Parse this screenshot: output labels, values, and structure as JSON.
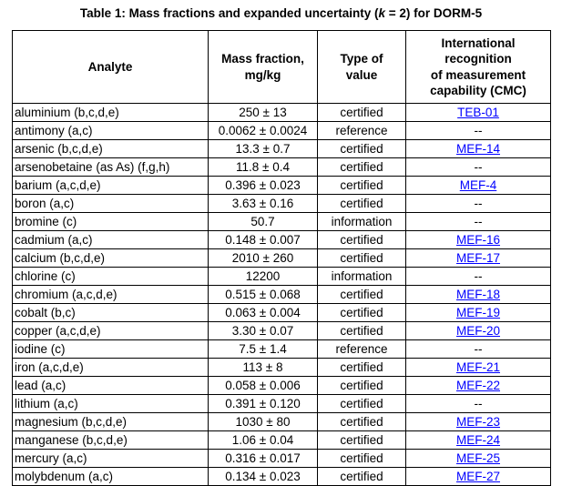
{
  "title": {
    "part1": "Table 1: Mass fractions and expanded uncertainty (",
    "k_symbol": "k",
    "part2": " = 2) for DORM-5"
  },
  "table": {
    "headers": {
      "analyte": "Analyte",
      "mass_fraction": "Mass fraction,\nmg/kg",
      "type_of_value": "Type of\nvalue",
      "cmc": "International recognition\nof measurement\ncapability (CMC)"
    },
    "link_color": "#0000ff",
    "no_entry_symbol": "--",
    "rows": [
      {
        "analyte": "aluminium (b,c,d,e)",
        "mass_fraction": "250 ± 13",
        "type_of_value": "certified",
        "cmc": "TEB-01",
        "cmc_is_link": true
      },
      {
        "analyte": "antimony (a,c)",
        "mass_fraction": "0.0062 ± 0.0024",
        "type_of_value": "reference",
        "cmc": "--",
        "cmc_is_link": false
      },
      {
        "analyte": "arsenic (b,c,d,e)",
        "mass_fraction": "13.3 ± 0.7",
        "type_of_value": "certified",
        "cmc": "MEF-14",
        "cmc_is_link": true
      },
      {
        "analyte": "arsenobetaine (as As) (f,g,h)",
        "mass_fraction": "11.8 ± 0.4",
        "type_of_value": "certified",
        "cmc": "--",
        "cmc_is_link": false
      },
      {
        "analyte": "barium (a,c,d,e)",
        "mass_fraction": "0.396 ± 0.023",
        "type_of_value": "certified",
        "cmc": "MEF-4",
        "cmc_is_link": true
      },
      {
        "analyte": "boron (a,c)",
        "mass_fraction": "3.63 ± 0.16",
        "type_of_value": "certified",
        "cmc": "--",
        "cmc_is_link": false
      },
      {
        "analyte": "bromine (c)",
        "mass_fraction": "50.7",
        "type_of_value": "information",
        "cmc": "--",
        "cmc_is_link": false
      },
      {
        "analyte": "cadmium (a,c)",
        "mass_fraction": "0.148 ± 0.007",
        "type_of_value": "certified",
        "cmc": "MEF-16",
        "cmc_is_link": true
      },
      {
        "analyte": "calcium (b,c,d,e)",
        "mass_fraction": "2010 ± 260",
        "type_of_value": "certified",
        "cmc": "MEF-17",
        "cmc_is_link": true
      },
      {
        "analyte": "chlorine (c)",
        "mass_fraction": "12200",
        "type_of_value": "information",
        "cmc": "--",
        "cmc_is_link": false
      },
      {
        "analyte": "chromium (a,c,d,e)",
        "mass_fraction": "0.515 ± 0.068",
        "type_of_value": "certified",
        "cmc": "MEF-18",
        "cmc_is_link": true
      },
      {
        "analyte": "cobalt (b,c)",
        "mass_fraction": "0.063 ± 0.004",
        "type_of_value": "certified",
        "cmc": "MEF-19",
        "cmc_is_link": true
      },
      {
        "analyte": "copper (a,c,d,e)",
        "mass_fraction": "3.30 ± 0.07",
        "type_of_value": "certified",
        "cmc": "MEF-20",
        "cmc_is_link": true
      },
      {
        "analyte": "iodine (c)",
        "mass_fraction": "7.5 ± 1.4",
        "type_of_value": "reference",
        "cmc": "--",
        "cmc_is_link": false
      },
      {
        "analyte": "iron (a,c,d,e)",
        "mass_fraction": "113 ± 8",
        "type_of_value": "certified",
        "cmc": "MEF-21",
        "cmc_is_link": true
      },
      {
        "analyte": "lead (a,c)",
        "mass_fraction": "0.058 ± 0.006",
        "type_of_value": "certified",
        "cmc": "MEF-22",
        "cmc_is_link": true
      },
      {
        "analyte": "lithium (a,c)",
        "mass_fraction": "0.391 ± 0.120",
        "type_of_value": "certified",
        "cmc": "--",
        "cmc_is_link": false
      },
      {
        "analyte": "magnesium (b,c,d,e)",
        "mass_fraction": "1030 ± 80",
        "type_of_value": "certified",
        "cmc": "MEF-23",
        "cmc_is_link": true
      },
      {
        "analyte": "manganese (b,c,d,e)",
        "mass_fraction": "1.06 ± 0.04",
        "type_of_value": "certified",
        "cmc": "MEF-24",
        "cmc_is_link": true
      },
      {
        "analyte": "mercury (a,c)",
        "mass_fraction": "0.316 ± 0.017",
        "type_of_value": "certified",
        "cmc": "MEF-25",
        "cmc_is_link": true
      },
      {
        "analyte": "molybdenum (a,c)",
        "mass_fraction": "0.134 ± 0.023",
        "type_of_value": "certified",
        "cmc": "MEF-27",
        "cmc_is_link": true
      }
    ]
  }
}
